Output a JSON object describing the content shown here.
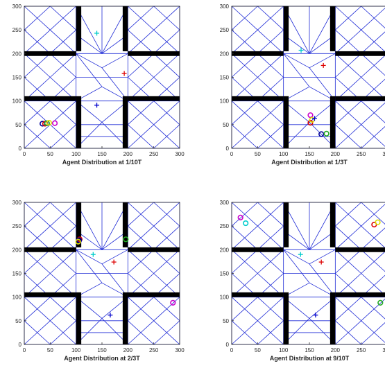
{
  "chart_data": [
    {
      "type": "scatter",
      "xlabel": "Agent Distribution at 1/10T",
      "xlim": [
        0,
        300
      ],
      "ylim": [
        0,
        300
      ],
      "xticks": [
        "0",
        "50",
        "100",
        "150",
        "200",
        "250",
        "300"
      ],
      "yticks": [
        "0",
        "50",
        "100",
        "150",
        "200",
        "250",
        "300"
      ],
      "agents": [
        {
          "marker": "o",
          "color": "#000099",
          "x": 35,
          "y": 52
        },
        {
          "marker": "o",
          "color": "#dd0000",
          "x": 40,
          "y": 52
        },
        {
          "marker": "o",
          "color": "#22aa22",
          "x": 44,
          "y": 53
        },
        {
          "marker": "o",
          "color": "#dddd00",
          "x": 48,
          "y": 54
        },
        {
          "marker": "o",
          "color": "#cc00cc",
          "x": 59,
          "y": 53
        },
        {
          "marker": "+",
          "color": "#0000cc",
          "x": 140,
          "y": 91
        },
        {
          "marker": "+",
          "color": "#dd0000",
          "x": 193,
          "y": 158
        },
        {
          "marker": "+",
          "color": "#00cccc",
          "x": 140,
          "y": 243
        }
      ]
    },
    {
      "type": "scatter",
      "xlabel": "Agent Distribution at 1/3T",
      "xlim": [
        0,
        300
      ],
      "ylim": [
        0,
        300
      ],
      "xticks": [
        "0",
        "50",
        "100",
        "150",
        "200",
        "250",
        "300"
      ],
      "yticks": [
        "0",
        "50",
        "100",
        "150",
        "200",
        "250",
        "300"
      ],
      "agents": [
        {
          "marker": "o",
          "color": "#cc00cc",
          "x": 152,
          "y": 70
        },
        {
          "marker": "o",
          "color": "#dd0000",
          "x": 152,
          "y": 54
        },
        {
          "marker": "o",
          "color": "#dddd00",
          "x": 155,
          "y": 60
        },
        {
          "marker": "+",
          "color": "#0000cc",
          "x": 160,
          "y": 63
        },
        {
          "marker": "o",
          "color": "#000099",
          "x": 173,
          "y": 30
        },
        {
          "marker": "o",
          "color": "#22aa22",
          "x": 183,
          "y": 31
        },
        {
          "marker": "+",
          "color": "#dd0000",
          "x": 177,
          "y": 175
        },
        {
          "marker": "+",
          "color": "#00cccc",
          "x": 134,
          "y": 207
        }
      ]
    },
    {
      "type": "scatter",
      "xlabel": "Agent Distribution at 2/3T",
      "xlim": [
        0,
        300
      ],
      "ylim": [
        0,
        300
      ],
      "xticks": [
        "0",
        "50",
        "100",
        "150",
        "200",
        "250",
        "300"
      ],
      "yticks": [
        "0",
        "50",
        "100",
        "150",
        "200",
        "250",
        "300"
      ],
      "agents": [
        {
          "marker": "o",
          "color": "#dd0000",
          "x": 107,
          "y": 222
        },
        {
          "marker": "o",
          "color": "#000099",
          "x": 106,
          "y": 220
        },
        {
          "marker": "o",
          "color": "#dddd00",
          "x": 104,
          "y": 217
        },
        {
          "marker": "o",
          "color": "#22aa22",
          "x": 196,
          "y": 222
        },
        {
          "marker": "+",
          "color": "#00cccc",
          "x": 133,
          "y": 190
        },
        {
          "marker": "+",
          "color": "#dd0000",
          "x": 173,
          "y": 174
        },
        {
          "marker": "+",
          "color": "#0000cc",
          "x": 166,
          "y": 62
        },
        {
          "marker": "o",
          "color": "#cc00cc",
          "x": 287,
          "y": 88
        }
      ]
    },
    {
      "type": "scatter",
      "xlabel": "Agent Distribution at 9/10T",
      "xlim": [
        0,
        300
      ],
      "ylim": [
        0,
        300
      ],
      "xticks": [
        "0",
        "50",
        "100",
        "150",
        "200",
        "250",
        "300"
      ],
      "yticks": [
        "0",
        "50",
        "100",
        "150",
        "200",
        "250",
        "300"
      ],
      "agents": [
        {
          "marker": "o",
          "color": "#cc00cc",
          "x": 17,
          "y": 268
        },
        {
          "marker": "o",
          "color": "#00cccc",
          "x": 27,
          "y": 256
        },
        {
          "marker": "o",
          "color": "#dd0000",
          "x": 275,
          "y": 253
        },
        {
          "marker": "o",
          "color": "#dddd00",
          "x": 282,
          "y": 258
        },
        {
          "marker": "+",
          "color": "#00cccc",
          "x": 133,
          "y": 190
        },
        {
          "marker": "+",
          "color": "#dd0000",
          "x": 173,
          "y": 174
        },
        {
          "marker": "o",
          "color": "#22aa22",
          "x": 287,
          "y": 88
        },
        {
          "marker": "+",
          "color": "#0000cc",
          "x": 162,
          "y": 62
        }
      ]
    }
  ],
  "colors": {
    "mesh": "#1f2bd6",
    "wall": "#000000",
    "axis": "#262626"
  }
}
